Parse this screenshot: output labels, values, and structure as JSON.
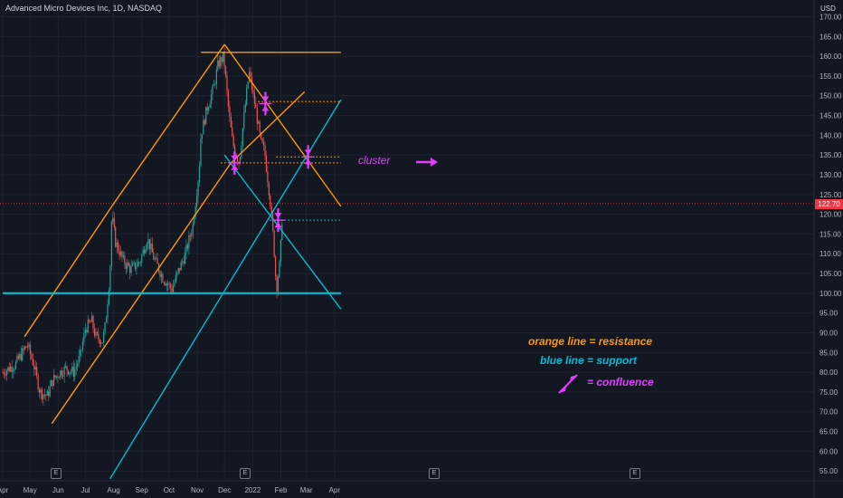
{
  "header": {
    "title": "Advanced Micro Devices Inc, 1D, NASDAQ",
    "currency": "USD"
  },
  "current_price_label": "122.70",
  "earnings_marker": "E",
  "annotations": {
    "cluster": "cluster",
    "resistance_legend": "orange line = resistance",
    "support_legend": "blue line = support",
    "confluence_legend": "= confluence"
  },
  "colors": {
    "background": "#131722",
    "resistance": "#ff9800",
    "support": "#00bcd4",
    "confluence": "#e040fb",
    "up_candle": "#26a69a",
    "down_candle": "#ef5350",
    "price_line": "#f23645"
  },
  "chart_data": {
    "type": "candlestick",
    "symbol": "Advanced Micro Devices Inc, 1D, NASDAQ",
    "x_ticks": [
      "Apr",
      "May",
      "Jun",
      "Jul",
      "Aug",
      "Sep",
      "Oct",
      "Nov",
      "Dec",
      "2022",
      "Feb",
      "Mar",
      "Apr"
    ],
    "y_ticks": [
      55,
      60,
      65,
      70,
      75,
      80,
      85,
      90,
      95,
      100,
      105,
      110,
      115,
      120,
      125,
      130,
      135,
      140,
      145,
      150,
      155,
      160,
      165,
      170
    ],
    "ylim": [
      53,
      173
    ],
    "price_path": [
      [
        "2021-04-01",
        80
      ],
      [
        "2021-04-15",
        82
      ],
      [
        "2021-04-28",
        87
      ],
      [
        "2021-05-05",
        82
      ],
      [
        "2021-05-12",
        75
      ],
      [
        "2021-05-20",
        74
      ],
      [
        "2021-05-26",
        78
      ],
      [
        "2021-06-03",
        80
      ],
      [
        "2021-06-10",
        81
      ],
      [
        "2021-06-18",
        80
      ],
      [
        "2021-06-25",
        84
      ],
      [
        "2021-07-01",
        91
      ],
      [
        "2021-07-08",
        93
      ],
      [
        "2021-07-12",
        89
      ],
      [
        "2021-07-20",
        88
      ],
      [
        "2021-07-23",
        92
      ],
      [
        "2021-07-28",
        105
      ],
      [
        "2021-07-30",
        120
      ],
      [
        "2021-08-03",
        113
      ],
      [
        "2021-08-12",
        108
      ],
      [
        "2021-08-20",
        106
      ],
      [
        "2021-08-30",
        108
      ],
      [
        "2021-09-07",
        114
      ],
      [
        "2021-09-14",
        109
      ],
      [
        "2021-09-24",
        104
      ],
      [
        "2021-10-04",
        101
      ],
      [
        "2021-10-12",
        106
      ],
      [
        "2021-10-19",
        110
      ],
      [
        "2021-10-27",
        117
      ],
      [
        "2021-11-03",
        131
      ],
      [
        "2021-11-05",
        140
      ],
      [
        "2021-11-12",
        147
      ],
      [
        "2021-11-19",
        152
      ],
      [
        "2021-11-24",
        158
      ],
      [
        "2021-11-30",
        160
      ],
      [
        "2021-12-06",
        145
      ],
      [
        "2021-12-10",
        138
      ],
      [
        "2021-12-17",
        133
      ],
      [
        "2021-12-23",
        146
      ],
      [
        "2021-12-28",
        156
      ],
      [
        "2022-01-04",
        147
      ],
      [
        "2022-01-10",
        138
      ],
      [
        "2022-01-14",
        136
      ],
      [
        "2022-01-20",
        124
      ],
      [
        "2022-01-24",
        113
      ],
      [
        "2022-01-27",
        101
      ],
      [
        "2022-01-31",
        108
      ],
      [
        "2022-02-03",
        122
      ]
    ],
    "current_price": 122.7,
    "resistance_lines": [
      {
        "points": [
          [
            "2021-04-25",
            89
          ],
          [
            "2021-07-30",
            122
          ],
          [
            "2021-12-01",
            163
          ]
        ]
      },
      {
        "points": [
          [
            "2021-05-25",
            67
          ],
          [
            "2021-12-08",
            133
          ],
          [
            "2022-02-27",
            151
          ]
        ]
      },
      {
        "points": [
          [
            "2021-12-01",
            163
          ],
          [
            "2022-04-08",
            122
          ]
        ]
      },
      {
        "points": [
          [
            "2021-11-05",
            161
          ],
          [
            "2022-04-08",
            161
          ]
        ]
      }
    ],
    "support_lines": [
      {
        "points": [
          [
            "2021-04-01",
            100
          ],
          [
            "2022-04-08",
            100
          ]
        ]
      },
      {
        "points": [
          [
            "2021-07-28",
            53
          ],
          [
            "2022-04-08",
            149
          ]
        ]
      },
      {
        "points": [
          [
            "2021-12-01",
            135
          ],
          [
            "2022-04-08",
            96
          ]
        ]
      }
    ],
    "dotted_levels": [
      {
        "price": 148.5,
        "from": "2022-01-07",
        "to": "2022-04-08",
        "color": "resistance"
      },
      {
        "price": 134.5,
        "from": "2022-01-27",
        "to": "2022-04-08",
        "color": "resistance"
      },
      {
        "price": 133.0,
        "from": "2021-11-27",
        "to": "2022-04-08",
        "color": "resistance"
      },
      {
        "price": 118.5,
        "from": "2022-01-20",
        "to": "2022-04-08",
        "color": "support"
      }
    ],
    "confluence_points": [
      [
        "2021-12-12",
        133
      ],
      [
        "2022-01-15",
        148
      ],
      [
        "2022-01-29",
        118.5
      ],
      [
        "2022-03-03",
        134.5
      ]
    ],
    "earnings_dates": [
      "2021-05-02",
      "2021-07-30",
      "2021-10-28",
      "2022-01-29"
    ],
    "legend": [
      "orange line = resistance",
      "blue line = support",
      "= confluence"
    ]
  }
}
